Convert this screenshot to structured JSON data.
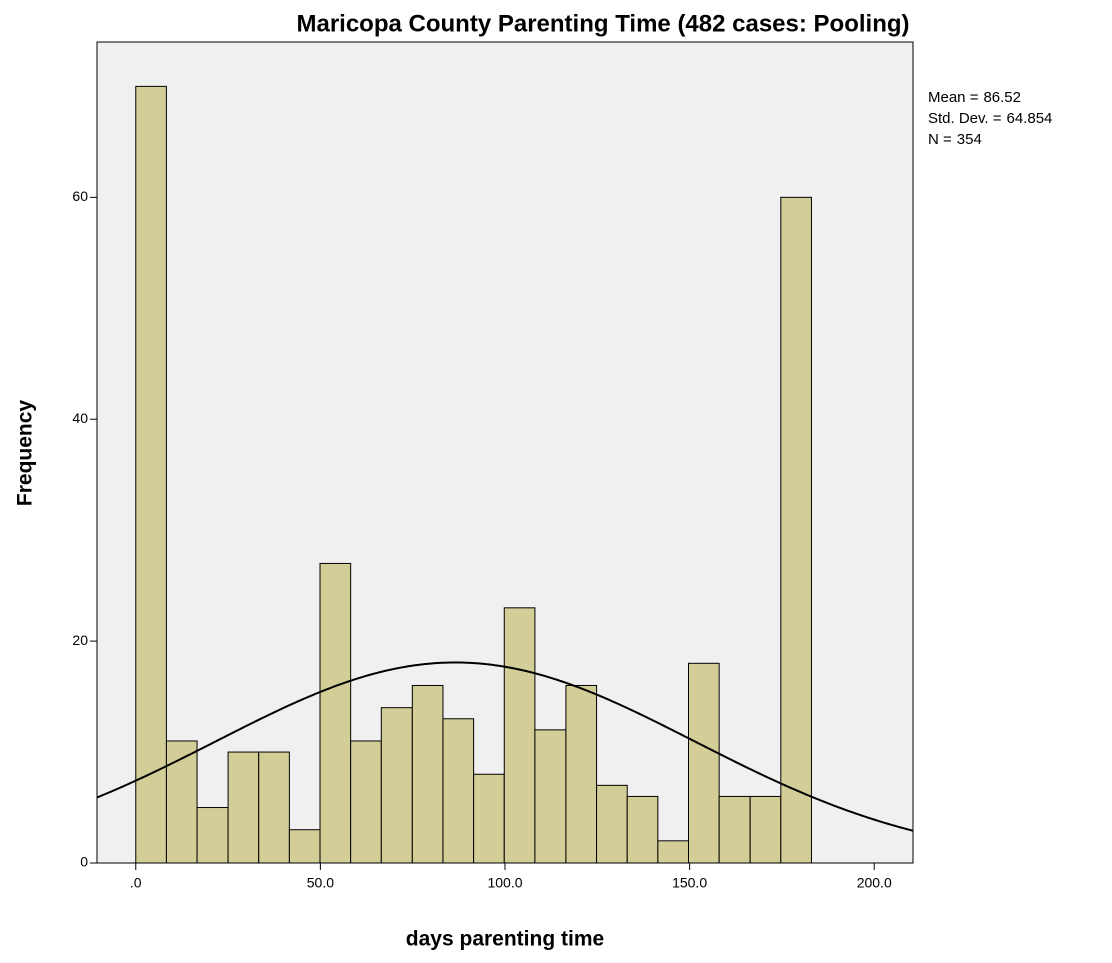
{
  "chart_data": {
    "type": "histogram",
    "title": "Maricopa County Parenting Time (482 cases: Pooling)",
    "x_label": "days parenting time",
    "y_label": "Frequency",
    "bins": [
      0,
      8.3,
      16.6,
      25.0,
      33.3,
      41.6,
      49.9,
      58.2,
      66.5,
      74.9,
      83.2,
      91.5,
      99.8,
      108.1,
      116.5,
      124.8,
      133.1,
      141.4,
      149.7,
      158.0,
      166.4,
      174.7,
      183.0
    ],
    "values": [
      70,
      11,
      5,
      10,
      10,
      3,
      27,
      11,
      14,
      16,
      13,
      8,
      23,
      12,
      16,
      7,
      6,
      2,
      18,
      6,
      6,
      60
    ],
    "color": "#d3ce97",
    "xlim": [
      -10.5,
      210.5
    ],
    "ylim": [
      0,
      74
    ],
    "xticks": [
      {
        "value": 0,
        "label": ".0"
      },
      {
        "value": 50,
        "label": "50.0"
      },
      {
        "value": 100,
        "label": "100.0"
      },
      {
        "value": 150,
        "label": "150.0"
      },
      {
        "value": 200,
        "label": "200.0"
      }
    ],
    "yticks": [
      0,
      20,
      40,
      60
    ],
    "stats": [
      {
        "name": "Mean =",
        "value": 86.52
      },
      {
        "name": "Std. Dev. =",
        "value": 64.854
      },
      {
        "name": "N =",
        "value": 354
      }
    ],
    "normal_curve": true
  }
}
